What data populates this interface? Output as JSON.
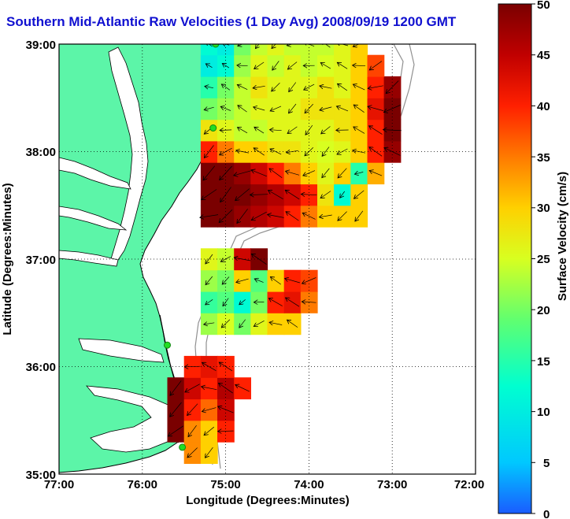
{
  "title": "Southern Mid-Atlantic Raw Velocities (1 Day Avg) 2008/09/19 1200 GMT",
  "axes": {
    "xlabel": "Longitude (Degrees:Minutes)",
    "ylabel": "Latitude (Degrees:Minutes)",
    "x_ticks": [
      "77:00",
      "76:00",
      "75:00",
      "74:00",
      "73:00",
      "72:00"
    ],
    "y_ticks": [
      "39:00",
      "38:00",
      "37:00",
      "36:00",
      "35:00"
    ]
  },
  "colorbar": {
    "label": "Surface Velocity (cm/s)",
    "ticks": [
      "50",
      "45",
      "40",
      "35",
      "30",
      "25",
      "20",
      "15",
      "10",
      "5",
      "0"
    ],
    "min": 0,
    "max": 50,
    "colors": {
      "c0": "#1a5cff",
      "c1": "#00c8ff",
      "c2": "#00ffd0",
      "c3": "#60ff70",
      "c4": "#d8ff20",
      "c5": "#ffd000",
      "c6": "#ff7a00",
      "c7": "#ff2000",
      "c8": "#c00000",
      "c9": "#7a0000"
    }
  },
  "map_colors": {
    "land": "#5cf5a8",
    "water": "#ffffff",
    "coast": "#000000",
    "isobath": "#909090",
    "station": "#22dd22"
  },
  "chart_data": {
    "type": "heatmap",
    "title": "Southern Mid-Atlantic Raw Velocities (1 Day Avg) 2008/09/19 1200 GMT",
    "xlabel": "Longitude (Degrees:Minutes)",
    "ylabel": "Latitude (Degrees:Minutes)",
    "xlim": [
      -77.0,
      -72.0
    ],
    "ylim": [
      35.0,
      39.0
    ],
    "grid": true,
    "value_label": "Surface Velocity (cm/s)",
    "value_range": [
      0,
      50
    ],
    "stations": [
      {
        "lon": -75.12,
        "lat": 39.0
      },
      {
        "lon": -75.15,
        "lat": 38.22
      },
      {
        "lon": -75.7,
        "lat": 36.2
      },
      {
        "lon": -75.52,
        "lat": 35.25
      }
    ],
    "regions": [
      {
        "name": "north",
        "lon": [
          -75.2,
          -75.0,
          -74.8,
          -74.6,
          -74.4,
          -74.2,
          -74.0,
          -73.8,
          -73.6,
          -73.4,
          -73.2,
          -73.0
        ],
        "lat": [
          37.4,
          37.6,
          37.8,
          38.0,
          38.2,
          38.4,
          38.6,
          38.8,
          39.0
        ],
        "speed": [
          [
            50,
            50,
            48,
            46,
            44,
            40,
            35,
            30,
            30,
            30,
            null,
            null
          ],
          [
            50,
            50,
            50,
            48,
            46,
            44,
            40,
            28,
            12,
            30,
            null,
            null
          ],
          [
            50,
            50,
            48,
            44,
            40,
            35,
            30,
            26,
            30,
            15,
            32,
            null
          ],
          [
            40,
            35,
            30,
            30,
            28,
            28,
            26,
            25,
            26,
            30,
            40,
            48
          ],
          [
            28,
            26,
            24,
            24,
            26,
            26,
            26,
            26,
            28,
            30,
            40,
            50
          ],
          [
            20,
            22,
            24,
            26,
            26,
            26,
            28,
            28,
            28,
            30,
            42,
            50
          ],
          [
            15,
            20,
            24,
            28,
            26,
            26,
            26,
            28,
            26,
            30,
            40,
            48
          ],
          [
            10,
            12,
            22,
            26,
            24,
            26,
            24,
            25,
            26,
            30,
            38,
            null
          ],
          [
            12,
            10,
            20,
            24,
            26,
            24,
            24,
            24,
            26,
            30,
            null,
            null
          ]
        ]
      },
      {
        "name": "middle",
        "lon": [
          -75.2,
          -75.0,
          -74.8,
          -74.6,
          -74.4,
          -74.2,
          -74.0
        ],
        "lat": [
          36.4,
          36.6,
          36.8,
          37.0
        ],
        "speed": [
          [
            22,
            25,
            20,
            26,
            30,
            30,
            null
          ],
          [
            16,
            18,
            12,
            20,
            40,
            42,
            35
          ],
          [
            22,
            20,
            30,
            18,
            30,
            40,
            38
          ],
          [
            26,
            24,
            44,
            50,
            null,
            null,
            null
          ]
        ]
      },
      {
        "name": "south",
        "lon": [
          -75.6,
          -75.4,
          -75.2,
          -75.0,
          -74.8
        ],
        "lat": [
          35.2,
          35.4,
          35.6,
          35.8,
          36.0
        ],
        "speed": [
          [
            null,
            34,
            30,
            null,
            null
          ],
          [
            50,
            34,
            30,
            40,
            null
          ],
          [
            50,
            40,
            36,
            44,
            null
          ],
          [
            50,
            44,
            40,
            46,
            40
          ],
          [
            null,
            40,
            42,
            40,
            null
          ]
        ]
      }
    ]
  }
}
